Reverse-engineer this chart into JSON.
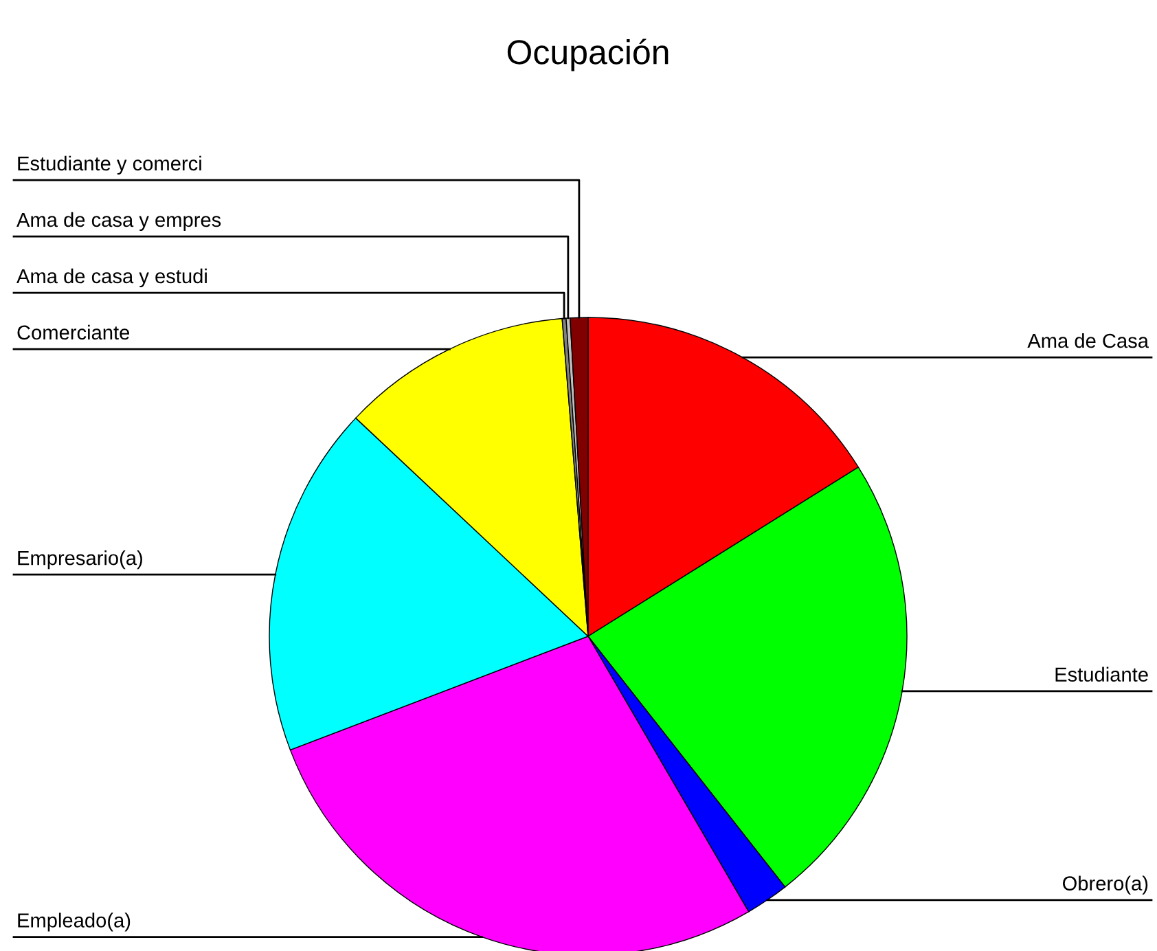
{
  "chart_data": {
    "type": "pie",
    "title": "Ocupación",
    "categories": [
      "Ama de Casa",
      "Estudiante",
      "Obrero(a)",
      "Empleado(a)",
      "Empresario(a)",
      "Comerciante",
      "Ama de casa y estudi",
      "Ama de casa y empres",
      "Estudiante y comerci"
    ],
    "values": [
      16.1,
      23.3,
      2.2,
      27.6,
      17.8,
      11.7,
      0.2,
      0.2,
      0.9
    ],
    "colors": [
      "#ff0000",
      "#00ff00",
      "#0000ff",
      "#ff00ff",
      "#00ffff",
      "#ffff00",
      "#808080",
      "#c0c0c0",
      "#800000"
    ]
  }
}
